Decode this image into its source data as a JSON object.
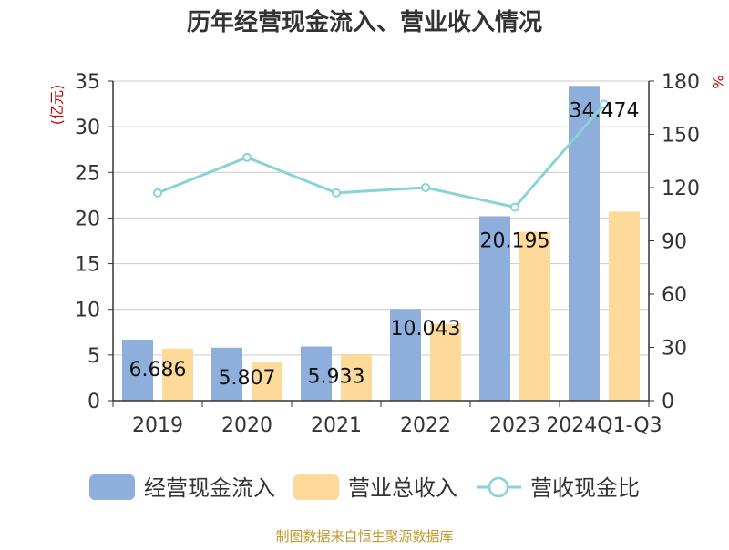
{
  "chart_data": {
    "type": "bar",
    "title": "历年经营现金流入、营业收入情况",
    "categories": [
      "2019",
      "2020",
      "2021",
      "2022",
      "2023",
      "2024Q1-Q3"
    ],
    "y_left": {
      "unit": "(亿元)",
      "range": [
        0,
        35
      ],
      "ticks": [
        "0",
        "5",
        "10",
        "15",
        "20",
        "25",
        "30",
        "35"
      ]
    },
    "y_right": {
      "unit": "%",
      "range": [
        0,
        180
      ],
      "ticks": [
        "0",
        "30",
        "60",
        "90",
        "120",
        "150",
        "180"
      ]
    },
    "grid": true,
    "legend_position": "bottom",
    "series": [
      {
        "name": "经营现金流入",
        "kind": "bar",
        "axis": "left",
        "color": "#8eaedb",
        "values": [
          6.686,
          5.807,
          5.933,
          10.043,
          20.195,
          34.474
        ],
        "labels": [
          "6.686",
          "5.807",
          "5.933",
          "10.043",
          "20.195",
          "34.474"
        ]
      },
      {
        "name": "营业总收入",
        "kind": "bar",
        "axis": "left",
        "color": "#fdd99a",
        "values": [
          5.7,
          4.2,
          5.1,
          8.4,
          18.5,
          20.7
        ]
      },
      {
        "name": "营收现金比",
        "kind": "line",
        "axis": "right",
        "color": "#87d3d6",
        "values": [
          117,
          137,
          117,
          120,
          109,
          167
        ]
      }
    ]
  },
  "source": "制图数据来自恒生聚源数据库"
}
